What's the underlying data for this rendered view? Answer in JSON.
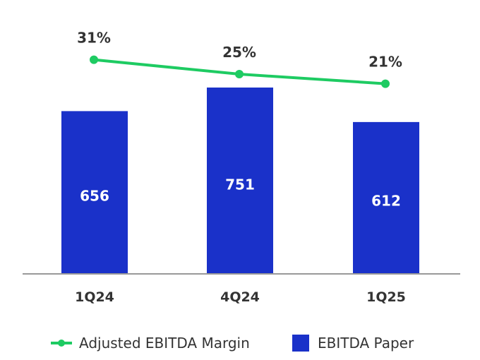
{
  "colors": {
    "bar": "#1a31c9",
    "line": "#1ecb62",
    "axis": "#999999",
    "text": "#333333"
  },
  "chart_data": {
    "type": "bar",
    "categories": [
      "1Q24",
      "4Q24",
      "1Q25"
    ],
    "series": [
      {
        "name": "EBITDA Paper",
        "type": "bar",
        "values": [
          656,
          751,
          612
        ],
        "labels": [
          "656",
          "751",
          "612"
        ]
      },
      {
        "name": "Adjusted EBITDA Margin",
        "type": "line",
        "values": [
          31,
          25,
          21
        ],
        "labels": [
          "31%",
          "25%",
          "21%"
        ]
      }
    ],
    "legend": {
      "position": "bottom",
      "items": [
        "Adjusted EBITDA Margin",
        "EBITDA Paper"
      ]
    },
    "grid": false
  }
}
